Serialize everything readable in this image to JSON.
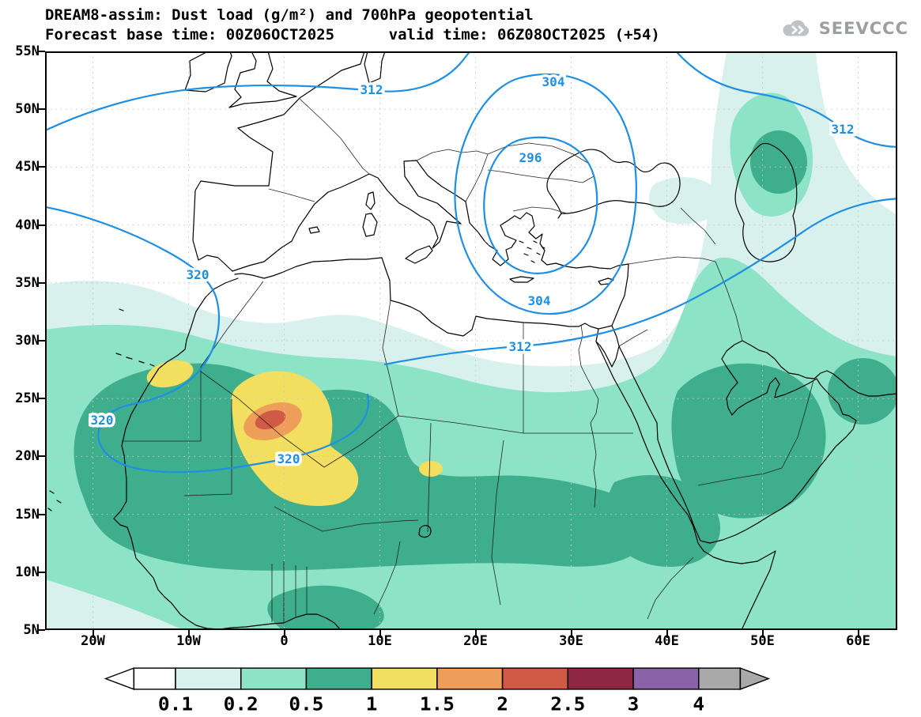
{
  "header": {
    "title": "DREAM8-assim: Dust load (g/m²) and 700hPa geopotential",
    "subtitle": "Forecast base time: 00Z06OCT2025      valid time: 06Z08OCT2025 (+54)",
    "logo_text": "SEEVCCC"
  },
  "chart_data": {
    "type": "heatmap",
    "map_type": "filled-contour geographic forecast map",
    "variable": "Dust load (g/m²)",
    "overlay_variable": "700hPa geopotential",
    "model": "DREAM8-assim",
    "forecast_base_time": "00Z06OCT2025",
    "valid_time": "06Z08OCT2025",
    "lead_time": "+54",
    "lat_ticks": [
      "55N",
      "50N",
      "45N",
      "40N",
      "35N",
      "30N",
      "25N",
      "20N",
      "15N",
      "10N",
      "5N"
    ],
    "lon_ticks": [
      "20W",
      "10W",
      "0",
      "10E",
      "20E",
      "30E",
      "40E",
      "50E",
      "60E"
    ],
    "lon_range": [
      -25,
      64
    ],
    "lat_range": [
      5,
      55
    ],
    "colorbar": {
      "labels": [
        "0.1",
        "0.2",
        "0.5",
        "1",
        "1.5",
        "2",
        "2.5",
        "3",
        "4"
      ],
      "colors": [
        "#ffffff",
        "#d9f1ec",
        "#8ce3c6",
        "#3fae8c",
        "#f2df60",
        "#ee9e58",
        "#d05a45",
        "#8e2742",
        "#8a62a8",
        "#a9a9a9"
      ]
    },
    "geopotential_contours": {
      "color": "#1e8fe3",
      "labels": [
        {
          "value": "312"
        },
        {
          "value": "304"
        },
        {
          "value": "296"
        },
        {
          "value": "304"
        },
        {
          "value": "312"
        },
        {
          "value": "312"
        },
        {
          "value": "320"
        },
        {
          "value": "320"
        },
        {
          "value": "320"
        }
      ],
      "low_center": "closed 296 low over the Balkans/Aegean"
    },
    "dust_features": [
      {
        "region": "Mali / S Algeria (~0E, 22N)",
        "max_level": "2-2.5 g/m²"
      },
      {
        "region": "Western Sahara coast (~13W, 27N)",
        "max_level": "1-1.5 g/m²"
      },
      {
        "region": "Sahara-Sahel belt, W Africa to Red Sea (10-28N)",
        "level": "0.5-1 g/m²"
      },
      {
        "region": "Arabian Peninsula",
        "level": "0.5-1 g/m²"
      },
      {
        "region": "Caucasus / Caspian",
        "level": "0.2-0.5 g/m²"
      }
    ]
  }
}
